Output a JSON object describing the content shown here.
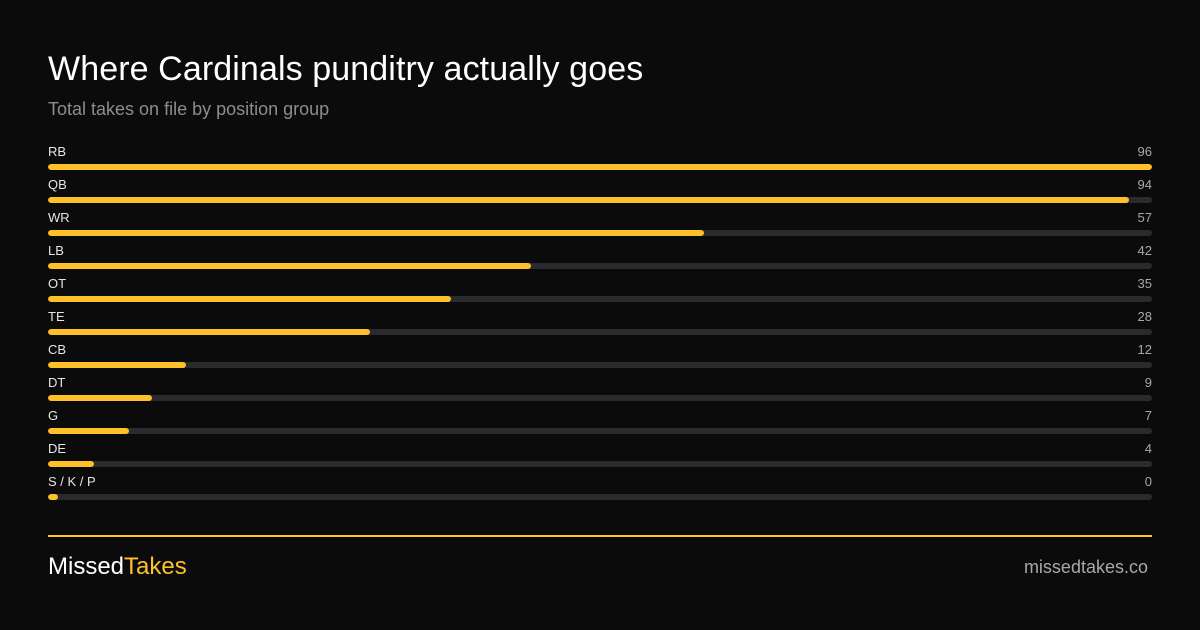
{
  "header": {
    "title": "Where Cardinals punditry actually goes",
    "subtitle": "Total takes on file by position group"
  },
  "colors": {
    "background": "#0b0b0b",
    "accent": "#ffc02a",
    "track": "#2b2b2f",
    "muted_text": "#8d8d8d"
  },
  "chart_data": {
    "type": "bar",
    "orientation": "horizontal",
    "title": "Where Cardinals punditry actually goes",
    "subtitle": "Total takes on file by position group",
    "xlabel": "",
    "ylabel": "",
    "xlim": [
      0,
      96
    ],
    "grid": false,
    "legend": "none",
    "categories": [
      "RB",
      "QB",
      "WR",
      "LB",
      "OT",
      "TE",
      "CB",
      "DT",
      "G",
      "DE",
      "S / K / P"
    ],
    "values": [
      96,
      94,
      57,
      42,
      35,
      28,
      12,
      9,
      7,
      4,
      0
    ]
  },
  "footer": {
    "brand_first": "Missed",
    "brand_second": "Takes",
    "site": "missedtakes.co"
  }
}
